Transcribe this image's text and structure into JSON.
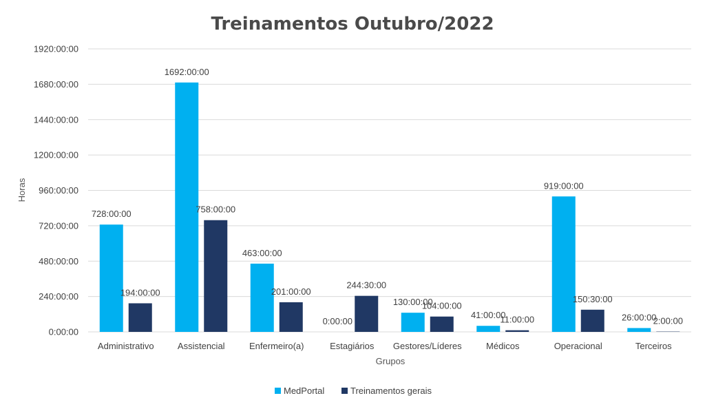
{
  "chart_data": {
    "type": "bar",
    "title": "Treinamentos Outubro/2022",
    "xlabel": "Grupos",
    "ylabel": "Horas",
    "unit": "hours (h:mm:ss)",
    "ylim": [
      0,
      1920
    ],
    "yticks": [
      0,
      240,
      480,
      720,
      960,
      1200,
      1440,
      1680,
      1920
    ],
    "ytick_labels": [
      "0:00:00",
      "240:00:00",
      "480:00:00",
      "720:00:00",
      "960:00:00",
      "1200:00:00",
      "1440:00:00",
      "1680:00:00",
      "1920:00:00"
    ],
    "grid": true,
    "legend_position": "bottom",
    "categories": [
      "Administrativo",
      "Assistencial",
      "Enfermeiro(a)",
      "Estagiários",
      "Gestores/Líderes",
      "Médicos",
      "Operacional",
      "Terceiros"
    ],
    "series": [
      {
        "name": "MedPortal",
        "color": "#00b0f0",
        "values": [
          728,
          1692,
          463,
          0,
          130,
          41,
          919,
          26
        ],
        "labels": [
          "728:00:00",
          "1692:00:00",
          "463:00:00",
          "0:00:00",
          "130:00:00",
          "41:00:00",
          "919:00:00",
          "26:00:00"
        ]
      },
      {
        "name": "Treinamentos gerais",
        "color": "#203864",
        "values": [
          194,
          758,
          201,
          244.5,
          104,
          11,
          150.5,
          2
        ],
        "labels": [
          "194:00:00",
          "758:00:00",
          "201:00:00",
          "244:30:00",
          "104:00:00",
          "11:00:00",
          "150:30:00",
          "2:00:00"
        ]
      }
    ]
  }
}
